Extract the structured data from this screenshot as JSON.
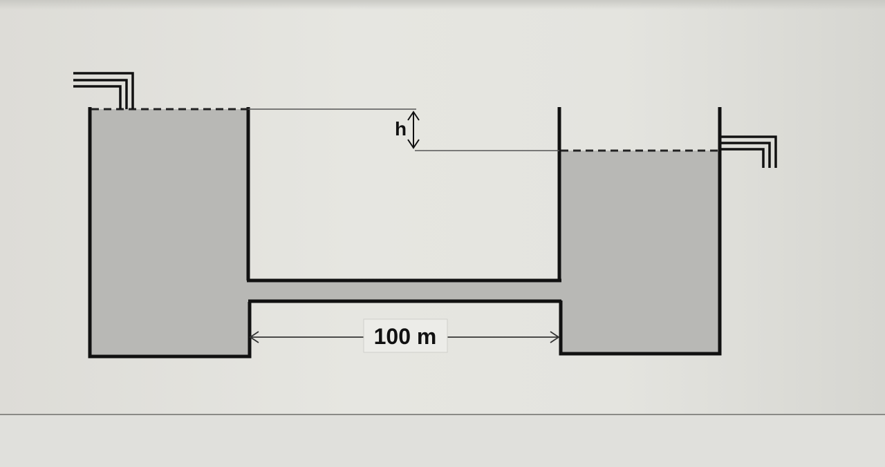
{
  "diagram": {
    "head_label": "h",
    "pipe_length_label": "100 m"
  },
  "colors": {
    "water": "#b8b8b5",
    "wall": "#111111",
    "background": "#e4e4df"
  }
}
